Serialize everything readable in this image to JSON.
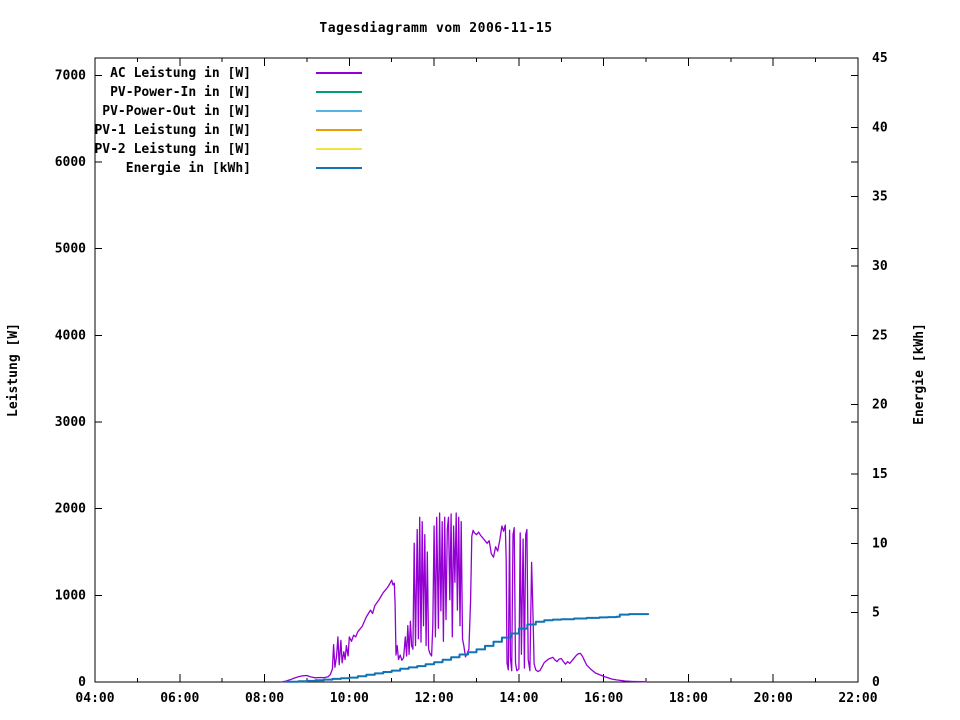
{
  "title": "Tagesdiagramm vom 2006-11-15",
  "colors": {
    "foreground": "#000000",
    "background": "#ffffff",
    "ac_leistung": "#9400d3",
    "pv_power_in": "#009e73",
    "pv_power_out": "#56b4e9",
    "pv1_leistung": "#e69f00",
    "pv2_leistung": "#f0e442",
    "energie": "#1173b4"
  },
  "axes": {
    "x": {
      "tick_labels": [
        "04:00",
        "06:00",
        "08:00",
        "10:00",
        "12:00",
        "14:00",
        "16:00",
        "18:00",
        "20:00",
        "22:00"
      ],
      "tick_hours": [
        4,
        6,
        8,
        10,
        12,
        14,
        16,
        18,
        20,
        22
      ],
      "minor_tick_hours": [
        5,
        7,
        9,
        11,
        13,
        15,
        17,
        19,
        21
      ]
    },
    "y_left": {
      "tick_labels": [
        "0",
        "1000",
        "2000",
        "3000",
        "4000",
        "5000",
        "6000",
        "7000"
      ],
      "tick_values": [
        0,
        1000,
        2000,
        3000,
        4000,
        5000,
        6000,
        7000
      ]
    },
    "y_right": {
      "tick_labels": [
        "0",
        "5",
        "10",
        "15",
        "20",
        "25",
        "30",
        "35",
        "40",
        "45"
      ],
      "tick_values": [
        0,
        5,
        10,
        15,
        20,
        25,
        30,
        35,
        40,
        45
      ]
    }
  },
  "chart_data": {
    "type": "line",
    "title": "Tagesdiagramm vom 2006-11-15",
    "x_unit": "time of day (hours)",
    "x_range": [
      4,
      22
    ],
    "y_left": {
      "label": "Leistung [W]",
      "range": [
        0,
        7200
      ]
    },
    "y_right": {
      "label": "Energie [kWh]",
      "range": [
        0,
        45
      ]
    },
    "grid": false,
    "legend_position": "top-left-inside",
    "series": [
      {
        "name": "AC Leistung in [W]",
        "color": "#9400d3",
        "axis": "left",
        "step": false,
        "width": 1.3,
        "points": [
          [
            8.4,
            0
          ],
          [
            8.5,
            10
          ],
          [
            8.6,
            25
          ],
          [
            8.7,
            45
          ],
          [
            8.8,
            60
          ],
          [
            8.9,
            72
          ],
          [
            9.0,
            75
          ],
          [
            9.05,
            65
          ],
          [
            9.1,
            58
          ],
          [
            9.2,
            48
          ],
          [
            9.3,
            52
          ],
          [
            9.4,
            50
          ],
          [
            9.5,
            60
          ],
          [
            9.55,
            85
          ],
          [
            9.6,
            150
          ],
          [
            9.63,
            430
          ],
          [
            9.66,
            170
          ],
          [
            9.7,
            300
          ],
          [
            9.73,
            520
          ],
          [
            9.76,
            200
          ],
          [
            9.8,
            480
          ],
          [
            9.83,
            220
          ],
          [
            9.87,
            350
          ],
          [
            9.9,
            260
          ],
          [
            9.93,
            420
          ],
          [
            9.97,
            300
          ],
          [
            10.0,
            520
          ],
          [
            10.05,
            470
          ],
          [
            10.1,
            540
          ],
          [
            10.15,
            520
          ],
          [
            10.2,
            580
          ],
          [
            10.3,
            640
          ],
          [
            10.4,
            750
          ],
          [
            10.5,
            830
          ],
          [
            10.55,
            790
          ],
          [
            10.6,
            880
          ],
          [
            10.7,
            950
          ],
          [
            10.8,
            1030
          ],
          [
            10.9,
            1090
          ],
          [
            10.95,
            1130
          ],
          [
            11.0,
            1175
          ],
          [
            11.03,
            1120
          ],
          [
            11.06,
            1140
          ],
          [
            11.08,
            900
          ],
          [
            11.1,
            310
          ],
          [
            11.13,
            420
          ],
          [
            11.16,
            260
          ],
          [
            11.2,
            310
          ],
          [
            11.24,
            250
          ],
          [
            11.28,
            280
          ],
          [
            11.32,
            520
          ],
          [
            11.35,
            300
          ],
          [
            11.38,
            650
          ],
          [
            11.41,
            320
          ],
          [
            11.44,
            700
          ],
          [
            11.47,
            420
          ],
          [
            11.5,
            380
          ],
          [
            11.53,
            1600
          ],
          [
            11.56,
            420
          ],
          [
            11.6,
            1760
          ],
          [
            11.63,
            500
          ],
          [
            11.66,
            1900
          ],
          [
            11.69,
            460
          ],
          [
            11.72,
            1850
          ],
          [
            11.75,
            650
          ],
          [
            11.78,
            1700
          ],
          [
            11.81,
            420
          ],
          [
            11.84,
            1500
          ],
          [
            11.87,
            380
          ],
          [
            11.9,
            330
          ],
          [
            11.94,
            300
          ],
          [
            11.97,
            650
          ],
          [
            12.0,
            1800
          ],
          [
            12.03,
            520
          ],
          [
            12.06,
            1900
          ],
          [
            12.1,
            620
          ],
          [
            12.13,
            1950
          ],
          [
            12.16,
            820
          ],
          [
            12.19,
            1850
          ],
          [
            12.22,
            470
          ],
          [
            12.25,
            1900
          ],
          [
            12.28,
            720
          ],
          [
            12.31,
            1760
          ],
          [
            12.34,
            1900
          ],
          [
            12.37,
            950
          ],
          [
            12.4,
            1940
          ],
          [
            12.43,
            520
          ],
          [
            12.46,
            1800
          ],
          [
            12.49,
            1150
          ],
          [
            12.52,
            1950
          ],
          [
            12.55,
            830
          ],
          [
            12.58,
            1900
          ],
          [
            12.61,
            650
          ],
          [
            12.64,
            1850
          ],
          [
            12.67,
            500
          ],
          [
            12.7,
            420
          ],
          [
            12.74,
            290
          ],
          [
            12.78,
            330
          ],
          [
            12.82,
            380
          ],
          [
            12.86,
            950
          ],
          [
            12.89,
            1680
          ],
          [
            12.92,
            1750
          ],
          [
            12.95,
            1720
          ],
          [
            13.0,
            1700
          ],
          [
            13.05,
            1730
          ],
          [
            13.1,
            1690
          ],
          [
            13.15,
            1660
          ],
          [
            13.2,
            1630
          ],
          [
            13.25,
            1600
          ],
          [
            13.3,
            1630
          ],
          [
            13.35,
            1480
          ],
          [
            13.4,
            1440
          ],
          [
            13.45,
            1560
          ],
          [
            13.5,
            1510
          ],
          [
            13.55,
            1640
          ],
          [
            13.6,
            1800
          ],
          [
            13.64,
            1740
          ],
          [
            13.68,
            1810
          ],
          [
            13.7,
            1400
          ],
          [
            13.72,
            220
          ],
          [
            13.75,
            140
          ],
          [
            13.78,
            1750
          ],
          [
            13.8,
            280
          ],
          [
            13.83,
            130
          ],
          [
            13.86,
            1700
          ],
          [
            13.89,
            1780
          ],
          [
            13.92,
            220
          ],
          [
            13.95,
            130
          ],
          [
            14.0,
            150
          ],
          [
            14.03,
            1720
          ],
          [
            14.06,
            320
          ],
          [
            14.1,
            1650
          ],
          [
            14.13,
            160
          ],
          [
            14.16,
            1700
          ],
          [
            14.19,
            1760
          ],
          [
            14.22,
            260
          ],
          [
            14.26,
            130
          ],
          [
            14.3,
            1380
          ],
          [
            14.33,
            820
          ],
          [
            14.36,
            210
          ],
          [
            14.4,
            140
          ],
          [
            14.45,
            120
          ],
          [
            14.5,
            135
          ],
          [
            14.55,
            180
          ],
          [
            14.6,
            225
          ],
          [
            14.7,
            265
          ],
          [
            14.8,
            285
          ],
          [
            14.85,
            255
          ],
          [
            14.9,
            235
          ],
          [
            14.95,
            265
          ],
          [
            15.0,
            270
          ],
          [
            15.05,
            235
          ],
          [
            15.1,
            205
          ],
          [
            15.15,
            235
          ],
          [
            15.2,
            215
          ],
          [
            15.25,
            245
          ],
          [
            15.3,
            275
          ],
          [
            15.35,
            305
          ],
          [
            15.4,
            325
          ],
          [
            15.45,
            330
          ],
          [
            15.5,
            295
          ],
          [
            15.55,
            245
          ],
          [
            15.6,
            195
          ],
          [
            15.7,
            145
          ],
          [
            15.8,
            105
          ],
          [
            15.9,
            85
          ],
          [
            16.0,
            65
          ],
          [
            16.1,
            48
          ],
          [
            16.2,
            34
          ],
          [
            16.3,
            24
          ],
          [
            16.5,
            12
          ],
          [
            16.7,
            6
          ],
          [
            16.9,
            3
          ],
          [
            17.0,
            2
          ]
        ]
      },
      {
        "name": "PV-Power-In in [W]",
        "color": "#009e73",
        "axis": "left",
        "step": false,
        "width": 1.6,
        "points": []
      },
      {
        "name": "PV-Power-Out in [W]",
        "color": "#56b4e9",
        "axis": "left",
        "step": false,
        "width": 1.6,
        "points": []
      },
      {
        "name": "PV-1 Leistung in [W]",
        "color": "#e69f00",
        "axis": "left",
        "step": false,
        "width": 1.6,
        "points": []
      },
      {
        "name": "PV-2 Leistung in [W]",
        "color": "#f0e442",
        "axis": "left",
        "step": false,
        "width": 1.6,
        "points": []
      },
      {
        "name": "Energie in [kWh]",
        "color": "#1173b4",
        "axis": "right",
        "step": true,
        "width": 2,
        "points": [
          [
            8.5,
            0.02
          ],
          [
            8.8,
            0.05
          ],
          [
            9.0,
            0.08
          ],
          [
            9.2,
            0.12
          ],
          [
            9.4,
            0.17
          ],
          [
            9.6,
            0.22
          ],
          [
            9.8,
            0.27
          ],
          [
            10.0,
            0.32
          ],
          [
            10.2,
            0.42
          ],
          [
            10.4,
            0.52
          ],
          [
            10.6,
            0.62
          ],
          [
            10.8,
            0.72
          ],
          [
            11.0,
            0.82
          ],
          [
            11.2,
            0.95
          ],
          [
            11.4,
            1.05
          ],
          [
            11.6,
            1.15
          ],
          [
            11.8,
            1.28
          ],
          [
            12.0,
            1.42
          ],
          [
            12.2,
            1.6
          ],
          [
            12.4,
            1.78
          ],
          [
            12.6,
            1.98
          ],
          [
            12.8,
            2.15
          ],
          [
            13.0,
            2.35
          ],
          [
            13.2,
            2.6
          ],
          [
            13.4,
            2.9
          ],
          [
            13.6,
            3.2
          ],
          [
            13.8,
            3.5
          ],
          [
            14.0,
            3.85
          ],
          [
            14.2,
            4.15
          ],
          [
            14.4,
            4.35
          ],
          [
            14.6,
            4.45
          ],
          [
            14.8,
            4.5
          ],
          [
            15.0,
            4.52
          ],
          [
            15.3,
            4.58
          ],
          [
            15.6,
            4.62
          ],
          [
            15.9,
            4.66
          ],
          [
            16.1,
            4.68
          ],
          [
            16.3,
            4.7
          ],
          [
            16.38,
            4.86
          ],
          [
            16.6,
            4.9
          ],
          [
            16.8,
            4.9
          ],
          [
            17.05,
            4.9
          ]
        ]
      }
    ]
  }
}
